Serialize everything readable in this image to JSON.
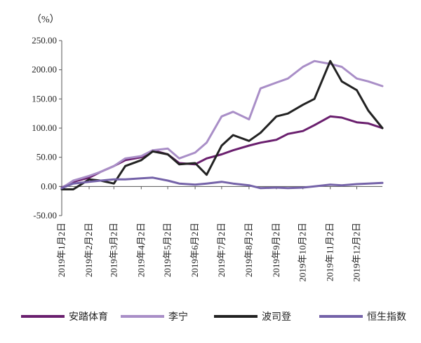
{
  "chart_data": {
    "type": "line",
    "title": "",
    "ylabel": "（%）",
    "ylim": [
      -50,
      250
    ],
    "yticks": [
      "250.00",
      "200.00",
      "150.00",
      "100.00",
      "50.00",
      "0.00",
      "-50.00"
    ],
    "ytick_values": [
      250,
      200,
      150,
      100,
      50,
      0,
      -50
    ],
    "categories": [
      "2019年1月2日",
      "2019年2月2日",
      "2019年3月2日",
      "2019年4月2日",
      "2019年5月2日",
      "2019年6月2日",
      "2019年7月2日",
      "2019年8月2日",
      "2019年9月2日",
      "2019年10月2日",
      "2019年11月2日",
      "2019年12月2日"
    ],
    "x": [
      "2019-01-02",
      "2019-01-15",
      "2019-02-02",
      "2019-02-15",
      "2019-03-02",
      "2019-03-15",
      "2019-04-02",
      "2019-04-15",
      "2019-05-02",
      "2019-05-15",
      "2019-06-02",
      "2019-06-15",
      "2019-07-02",
      "2019-07-15",
      "2019-08-02",
      "2019-08-15",
      "2019-09-02",
      "2019-09-15",
      "2019-10-02",
      "2019-10-15",
      "2019-11-02",
      "2019-11-15",
      "2019-12-02",
      "2019-12-15",
      "2019-12-31"
    ],
    "series": [
      {
        "name": "安踏体育",
        "color": "#6a1f6e",
        "values": [
          -2,
          8,
          15,
          25,
          35,
          45,
          50,
          62,
          55,
          40,
          38,
          48,
          55,
          62,
          70,
          75,
          80,
          90,
          95,
          105,
          120,
          118,
          110,
          108,
          100
        ]
      },
      {
        "name": "李宁",
        "color": "#a98ec7",
        "values": [
          -3,
          10,
          18,
          25,
          35,
          48,
          52,
          62,
          65,
          48,
          58,
          75,
          120,
          128,
          115,
          168,
          178,
          185,
          205,
          215,
          210,
          205,
          185,
          180,
          172
        ]
      },
      {
        "name": "波司登",
        "color": "#222222",
        "values": [
          -5,
          -5,
          12,
          10,
          5,
          35,
          45,
          60,
          55,
          38,
          40,
          20,
          70,
          88,
          78,
          92,
          120,
          125,
          140,
          150,
          215,
          180,
          165,
          130,
          100
        ]
      },
      {
        "name": "恒生指数",
        "color": "#7462a8",
        "values": [
          -3,
          5,
          8,
          10,
          12,
          12,
          14,
          15,
          10,
          5,
          3,
          5,
          8,
          5,
          2,
          -3,
          -2,
          -3,
          -2,
          0,
          3,
          2,
          4,
          5,
          6
        ]
      }
    ],
    "grid": false,
    "legend_position": "bottom"
  }
}
